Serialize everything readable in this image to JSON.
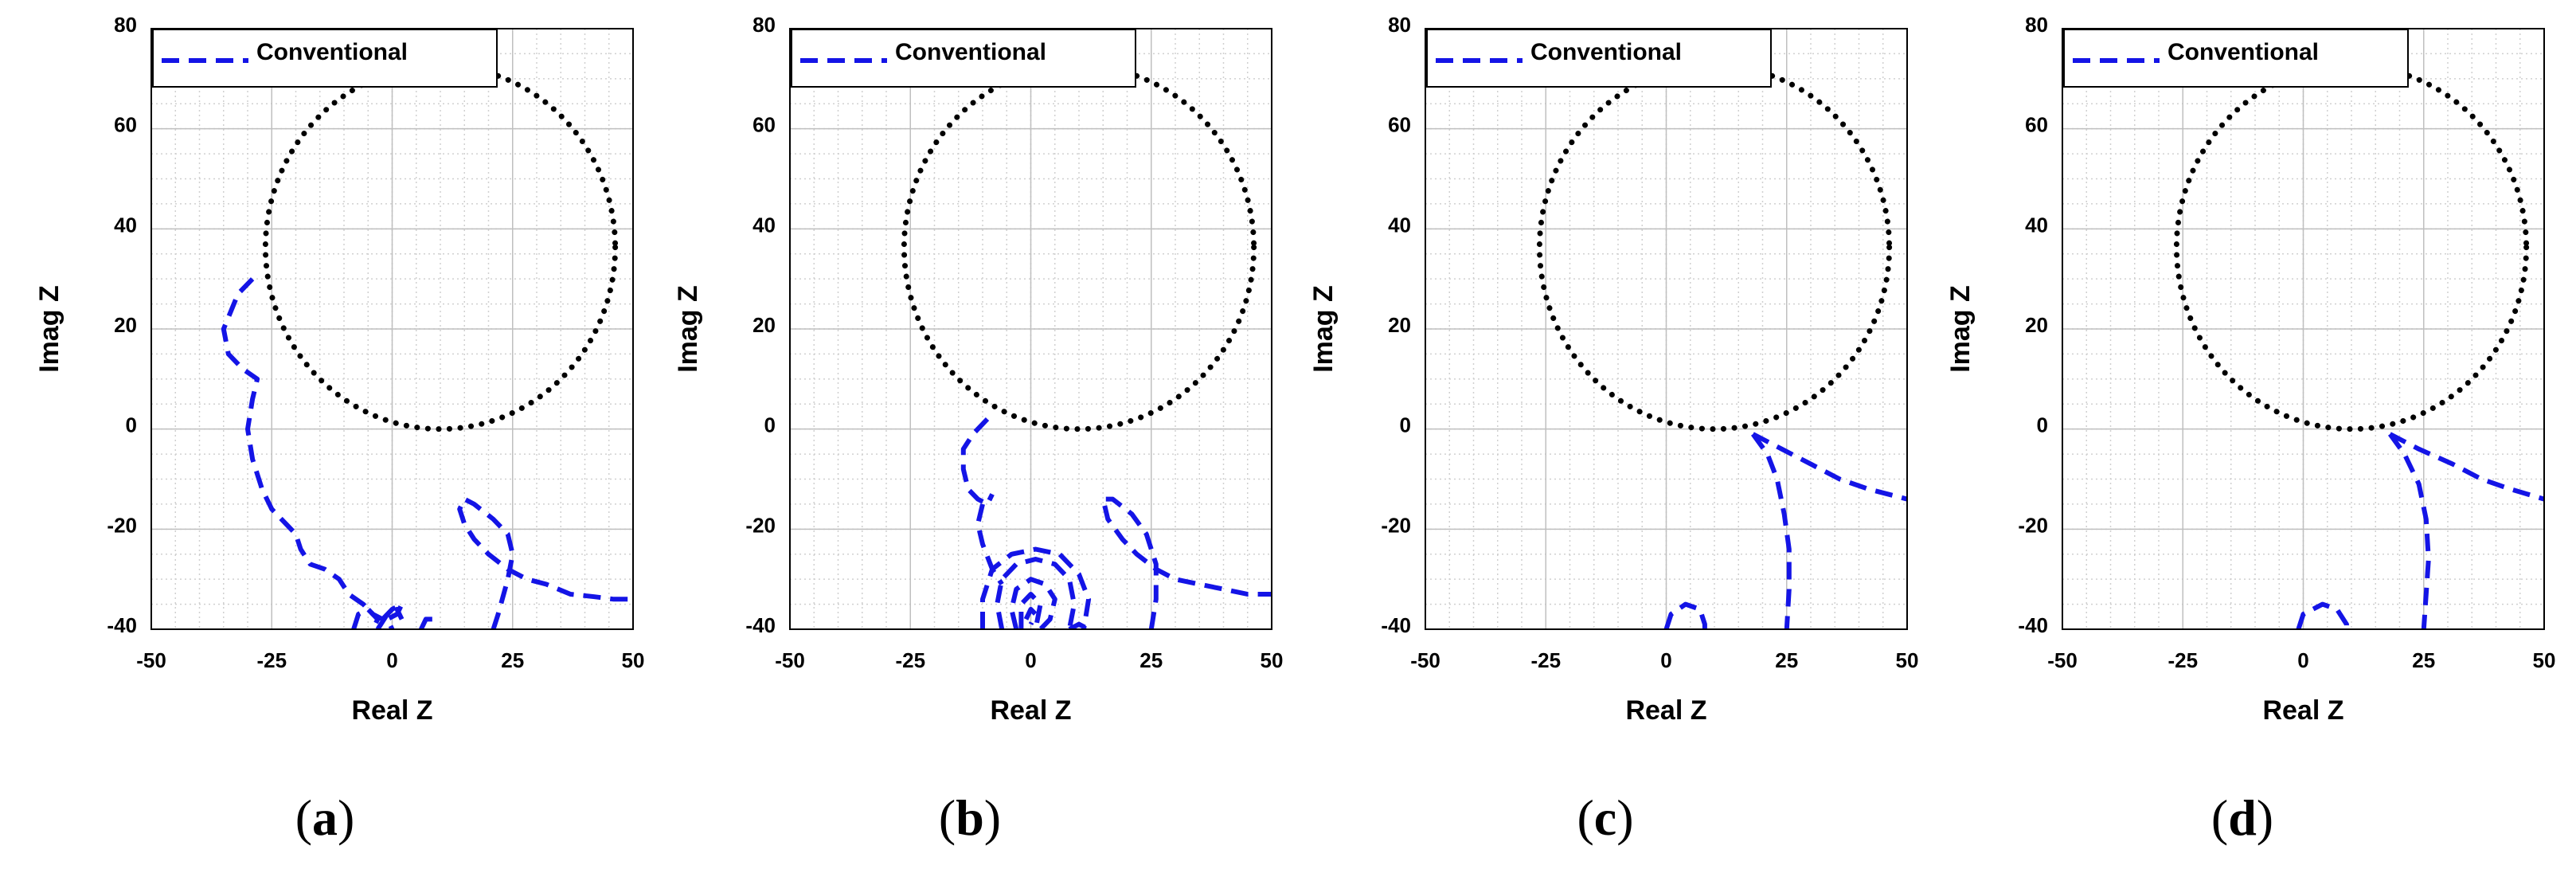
{
  "figure": {
    "colors": {
      "series": "#1414e6",
      "circle": "#000000",
      "grid": "#bfbfbf",
      "minor_grid": "#d0d0d0",
      "frame": "#000000"
    }
  },
  "chart_data": [
    {
      "type": "line",
      "panel_label": "(a)",
      "panel_letter": "a",
      "xlabel": "Real Z",
      "ylabel": "Imag Z",
      "xlim": [
        -50,
        50
      ],
      "ylim": [
        -40,
        80
      ],
      "xticks": [
        -50,
        -25,
        0,
        25,
        50
      ],
      "yticks": [
        -40,
        -20,
        0,
        20,
        40,
        60,
        80
      ],
      "grid": true,
      "legend": {
        "position": "top-left",
        "entries": [
          "Conventional"
        ]
      },
      "reference_circle": {
        "center": [
          10,
          36.3
        ],
        "radius": 36.3,
        "style": "dotted"
      },
      "series": [
        {
          "name": "Conventional",
          "style": "dashed",
          "segments": [
            [
              [
                -29,
                30
              ],
              [
                -32,
                27
              ],
              [
                -35,
                20
              ],
              [
                -34,
                15
              ],
              [
                -31,
                12
              ],
              [
                -28,
                10
              ],
              [
                -29,
                6
              ],
              [
                -30,
                0
              ],
              [
                -29,
                -6
              ],
              [
                -27,
                -12
              ],
              [
                -25,
                -16
              ],
              [
                -22,
                -19
              ],
              [
                -20,
                -21
              ],
              [
                -19,
                -24
              ],
              [
                -17,
                -27
              ],
              [
                -14,
                -28
              ],
              [
                -11,
                -30
              ],
              [
                -9,
                -33
              ],
              [
                -6,
                -35
              ],
              [
                -4,
                -37
              ],
              [
                -2,
                -38
              ]
            ],
            [
              [
                -2,
                -38
              ],
              [
                0,
                -36
              ],
              [
                2,
                -35
              ],
              [
                1,
                -37
              ],
              [
                -1,
                -38
              ],
              [
                0,
                -40
              ]
            ],
            [
              [
                -8,
                -40
              ],
              [
                -7,
                -37
              ],
              [
                -5,
                -36
              ],
              [
                -3,
                -38
              ],
              [
                -4,
                -40
              ]
            ],
            [
              [
                -3,
                -40
              ],
              [
                -1,
                -37
              ],
              [
                1,
                -36
              ],
              [
                2,
                -38
              ]
            ],
            [
              [
                6,
                -40
              ],
              [
                7,
                -38
              ],
              [
                9,
                -38
              ]
            ],
            [
              [
                21,
                -40
              ],
              [
                22,
                -37
              ],
              [
                24,
                -30
              ],
              [
                25,
                -25
              ],
              [
                24,
                -21
              ],
              [
                21,
                -18
              ],
              [
                17,
                -15
              ],
              [
                15,
                -14
              ],
              [
                14,
                -16
              ],
              [
                15,
                -19
              ],
              [
                17,
                -22
              ],
              [
                20,
                -25
              ],
              [
                24,
                -28
              ],
              [
                28,
                -30
              ],
              [
                32,
                -31
              ],
              [
                37,
                -33
              ],
              [
                42,
                -33.5
              ],
              [
                46,
                -34
              ],
              [
                50,
                -34
              ]
            ]
          ]
        }
      ]
    },
    {
      "type": "line",
      "panel_label": "(b)",
      "panel_letter": "b",
      "xlabel": "Real Z",
      "ylabel": "Imag Z",
      "xlim": [
        -50,
        50
      ],
      "ylim": [
        -40,
        80
      ],
      "xticks": [
        -50,
        -25,
        0,
        25,
        50
      ],
      "yticks": [
        -40,
        -20,
        0,
        20,
        40,
        60,
        80
      ],
      "grid": true,
      "legend": {
        "position": "top-left",
        "entries": [
          "Conventional"
        ]
      },
      "reference_circle": {
        "center": [
          10,
          36.3
        ],
        "radius": 36.3,
        "style": "dotted"
      },
      "series": [
        {
          "name": "Conventional",
          "style": "dashed",
          "segments": [
            [
              [
                -9,
                2
              ],
              [
                -12,
                -1
              ],
              [
                -14,
                -4
              ],
              [
                -14,
                -8
              ],
              [
                -13,
                -12
              ],
              [
                -11,
                -14
              ],
              [
                -9,
                -15
              ],
              [
                -8,
                -13
              ]
            ],
            [
              [
                -10,
                -15
              ],
              [
                -11,
                -19
              ],
              [
                -10,
                -23
              ],
              [
                -8,
                -28
              ],
              [
                -6,
                -31
              ]
            ],
            [
              [
                -3,
                -40
              ],
              [
                -4,
                -36
              ],
              [
                -3,
                -32
              ],
              [
                0,
                -30
              ],
              [
                3,
                -31
              ],
              [
                5,
                -34
              ],
              [
                4,
                -38
              ],
              [
                2,
                -40
              ]
            ],
            [
              [
                -6,
                -40
              ],
              [
                -7,
                -35
              ],
              [
                -6,
                -30
              ],
              [
                -3,
                -27
              ],
              [
                1,
                -26
              ],
              [
                5,
                -27
              ],
              [
                8,
                -30
              ],
              [
                9,
                -35
              ],
              [
                8,
                -40
              ]
            ],
            [
              [
                -10,
                -40
              ],
              [
                -10,
                -34
              ],
              [
                -8,
                -28
              ],
              [
                -4,
                -25
              ],
              [
                1,
                -24
              ],
              [
                6,
                -25
              ],
              [
                10,
                -29
              ],
              [
                12,
                -34
              ],
              [
                11,
                -40
              ]
            ],
            [
              [
                -2,
                -40
              ],
              [
                -2,
                -35
              ],
              [
                0,
                -33
              ],
              [
                2,
                -35
              ],
              [
                1,
                -40
              ]
            ],
            [
              [
                -1,
                -38
              ],
              [
                0,
                -36
              ],
              [
                1,
                -37
              ],
              [
                0,
                -39
              ]
            ],
            [
              [
                8,
                -40
              ],
              [
                10,
                -39
              ],
              [
                12,
                -40
              ]
            ],
            [
              [
                25,
                -40
              ],
              [
                26,
                -34
              ],
              [
                26,
                -27
              ],
              [
                24,
                -21
              ],
              [
                21,
                -17
              ],
              [
                17,
                -14
              ],
              [
                15,
                -14
              ],
              [
                16,
                -18
              ],
              [
                19,
                -22
              ],
              [
                22,
                -25
              ],
              [
                26,
                -28
              ],
              [
                30,
                -30
              ],
              [
                35,
                -31
              ],
              [
                40,
                -32
              ],
              [
                45,
                -33
              ],
              [
                50,
                -33
              ]
            ]
          ]
        }
      ]
    },
    {
      "type": "line",
      "panel_label": "(c)",
      "panel_letter": "c",
      "xlabel": "Real Z",
      "ylabel": "Imag Z",
      "xlim": [
        -50,
        50
      ],
      "ylim": [
        -40,
        80
      ],
      "xticks": [
        -50,
        -25,
        0,
        25,
        50
      ],
      "yticks": [
        -40,
        -20,
        0,
        20,
        40,
        60,
        80
      ],
      "grid": true,
      "legend": {
        "position": "top-left",
        "entries": [
          "Conventional"
        ]
      },
      "reference_circle": {
        "center": [
          10,
          36.3
        ],
        "radius": 36.3,
        "style": "dotted"
      },
      "series": [
        {
          "name": "Conventional",
          "style": "dashed",
          "segments": [
            [
              [
                18,
                -1
              ],
              [
                21,
                -5
              ],
              [
                23,
                -10
              ],
              [
                24.5,
                -17
              ],
              [
                25.5,
                -24
              ],
              [
                25.5,
                -32
              ],
              [
                25,
                -40
              ]
            ],
            [
              [
                18,
                -1
              ],
              [
                24,
                -4
              ],
              [
                30,
                -7
              ],
              [
                36,
                -10
              ],
              [
                42,
                -12
              ],
              [
                50,
                -14
              ]
            ],
            [
              [
                0,
                -40
              ],
              [
                1,
                -37
              ],
              [
                4,
                -35
              ],
              [
                7,
                -36
              ],
              [
                8,
                -39
              ],
              [
                8,
                -40
              ]
            ]
          ]
        }
      ]
    },
    {
      "type": "line",
      "panel_label": "(d)",
      "panel_letter": "d",
      "xlabel": "Real Z",
      "ylabel": "Imag Z",
      "xlim": [
        -50,
        50
      ],
      "ylim": [
        -40,
        80
      ],
      "xticks": [
        -50,
        -25,
        0,
        25,
        50
      ],
      "yticks": [
        -40,
        -20,
        0,
        20,
        40,
        60,
        80
      ],
      "grid": true,
      "legend": {
        "position": "top-left",
        "entries": [
          "Conventional"
        ]
      },
      "reference_circle": {
        "center": [
          10,
          36.3
        ],
        "radius": 36.3,
        "style": "dotted"
      },
      "series": [
        {
          "name": "Conventional",
          "style": "dashed",
          "segments": [
            [
              [
                18,
                -1
              ],
              [
                21,
                -5
              ],
              [
                24,
                -11
              ],
              [
                25.5,
                -18
              ],
              [
                26,
                -26
              ],
              [
                25.5,
                -33
              ],
              [
                25,
                -40
              ]
            ],
            [
              [
                18,
                -1
              ],
              [
                24,
                -4
              ],
              [
                31,
                -7
              ],
              [
                37,
                -10
              ],
              [
                43,
                -12
              ],
              [
                50,
                -14
              ]
            ],
            [
              [
                -1,
                -40
              ],
              [
                0,
                -37
              ],
              [
                4,
                -35
              ],
              [
                7,
                -36
              ],
              [
                9,
                -39
              ],
              [
                9,
                -40
              ]
            ]
          ]
        }
      ]
    }
  ]
}
